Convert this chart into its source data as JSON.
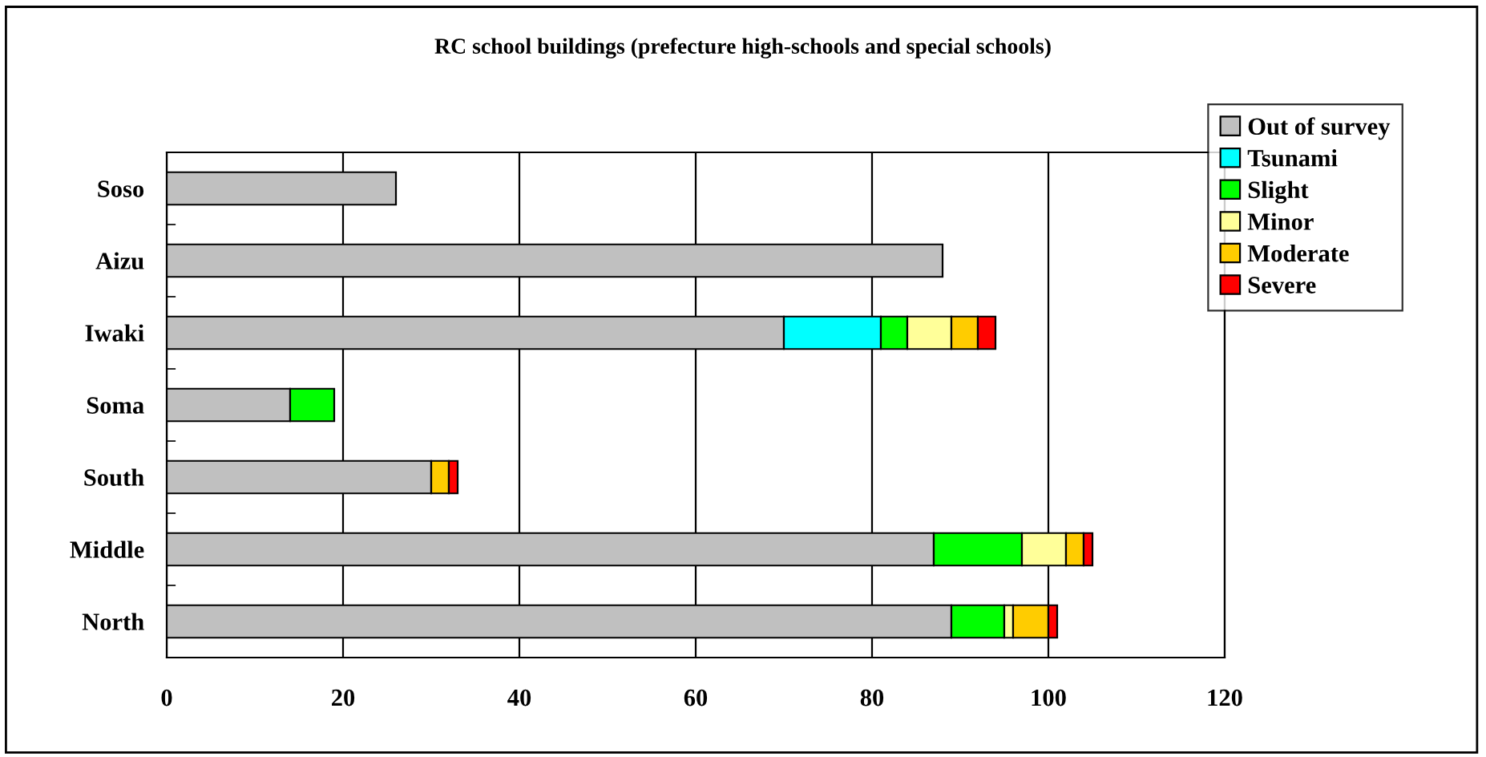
{
  "chart_data": {
    "type": "bar",
    "orientation": "horizontal",
    "stacked": true,
    "title": "RC school buildings (prefecture high-schools and special schools)",
    "categories": [
      "Soso",
      "Aizu",
      "Iwaki",
      "Soma",
      "South",
      "Middle",
      "North"
    ],
    "series": [
      {
        "name": "Out of survey",
        "color": "#c0c0c0",
        "values": [
          26,
          88,
          70,
          14,
          30,
          87,
          89
        ]
      },
      {
        "name": "Tsunami",
        "color": "#00ffff",
        "values": [
          0,
          0,
          11,
          0,
          0,
          0,
          0
        ]
      },
      {
        "name": "Slight",
        "color": "#00ff00",
        "values": [
          0,
          0,
          3,
          5,
          0,
          10,
          6
        ]
      },
      {
        "name": "Minor",
        "color": "#ffff99",
        "values": [
          0,
          0,
          5,
          0,
          0,
          5,
          1
        ]
      },
      {
        "name": "Moderate",
        "color": "#ffcc00",
        "values": [
          0,
          0,
          3,
          0,
          2,
          2,
          4
        ]
      },
      {
        "name": "Severe",
        "color": "#ff0000",
        "values": [
          0,
          0,
          2,
          0,
          1,
          1,
          1
        ]
      }
    ],
    "xlim": [
      0,
      120
    ],
    "xticks": [
      0,
      20,
      40,
      60,
      80,
      100,
      120
    ],
    "grid": "x",
    "legend": "top right"
  }
}
